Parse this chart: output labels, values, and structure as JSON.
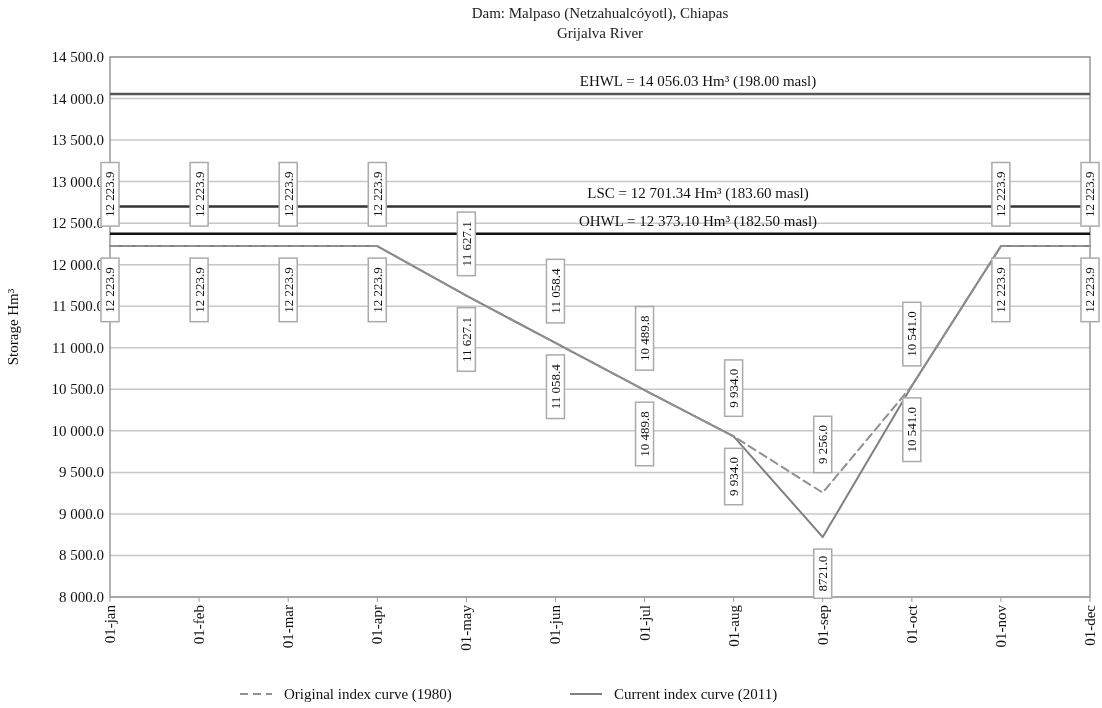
{
  "chart_data": {
    "type": "line",
    "title": "Dam: Malpaso (Netzahualcóyotl), Chiapas",
    "subtitle": "Grijalva River",
    "ylabel": "Storage Hm³",
    "categories": [
      "01-jan",
      "01-feb",
      "01-mar",
      "01-apr",
      "01-may",
      "01-jun",
      "01-jul",
      "01-aug",
      "01-sep",
      "01-oct",
      "01-nov",
      "01-dec"
    ],
    "series": [
      {
        "name": "Original index curve (1980)",
        "color": "#909090",
        "line_style": "dashed",
        "values": [
          12223.9,
          12223.9,
          12223.9,
          12223.9,
          11627.1,
          11058.4,
          10489.8,
          9934.0,
          9256.0,
          10541.0,
          12223.9,
          12223.9
        ],
        "value_labels": [
          "12 223.9",
          "12 223.9",
          "12 223.9",
          "12 223.9",
          "11 627.1",
          "11 058.4",
          "10 489.8",
          "9 934.0",
          "9 256.0",
          "10 541.0",
          "12 223.9",
          "12 223.9"
        ]
      },
      {
        "name": "Current index curve (2011)",
        "color": "#808080",
        "line_style": "solid",
        "values": [
          12223.9,
          12223.9,
          12223.9,
          12223.9,
          11627.1,
          11058.4,
          10489.8,
          9934.0,
          8721.0,
          10541.0,
          12223.9,
          12223.9
        ],
        "value_labels": [
          "12 223.9",
          "12 223.9",
          "12 223.9",
          "12 223.9",
          "11 627.1",
          "11 058.4",
          "10 489.8",
          "9 934.0",
          "8721.0",
          "10 541.0",
          "12 223.9",
          "12 223.9"
        ]
      }
    ],
    "ylim": [
      8000,
      14500
    ],
    "yticks": [
      {
        "value": 8000,
        "label": "8 000.0"
      },
      {
        "value": 8500,
        "label": "8 500.0"
      },
      {
        "value": 9000,
        "label": "9 000.0"
      },
      {
        "value": 9500,
        "label": "9 500.0"
      },
      {
        "value": 10000,
        "label": "10 000.0"
      },
      {
        "value": 10500,
        "label": "10 500.0"
      },
      {
        "value": 11000,
        "label": "11 000.0"
      },
      {
        "value": 11500,
        "label": "11 500.0"
      },
      {
        "value": 12000,
        "label": "12 000.0"
      },
      {
        "value": 12500,
        "label": "12 500.0"
      },
      {
        "value": 13000,
        "label": "13 000.0"
      },
      {
        "value": 13500,
        "label": "13 500.0"
      },
      {
        "value": 14000,
        "label": "14 000.0"
      },
      {
        "value": 14500,
        "label": "14 500.0"
      }
    ],
    "ref_lines": [
      {
        "axis": "y",
        "value": 14056.03,
        "label": "EHWL = 14 056.03 Hm³ (198.00 masl)",
        "color": "#555555"
      },
      {
        "axis": "y",
        "value": 12701.34,
        "label": "LSC = 12 701.34 Hm³ (183.60 masl)",
        "color": "#333333"
      },
      {
        "axis": "y",
        "value": 12373.1,
        "label": "OHWL = 12 373.10 Hm³ (182.50 masl)",
        "color": "#111111"
      }
    ],
    "grid": "y",
    "legend": "bottom",
    "marker": "none"
  }
}
